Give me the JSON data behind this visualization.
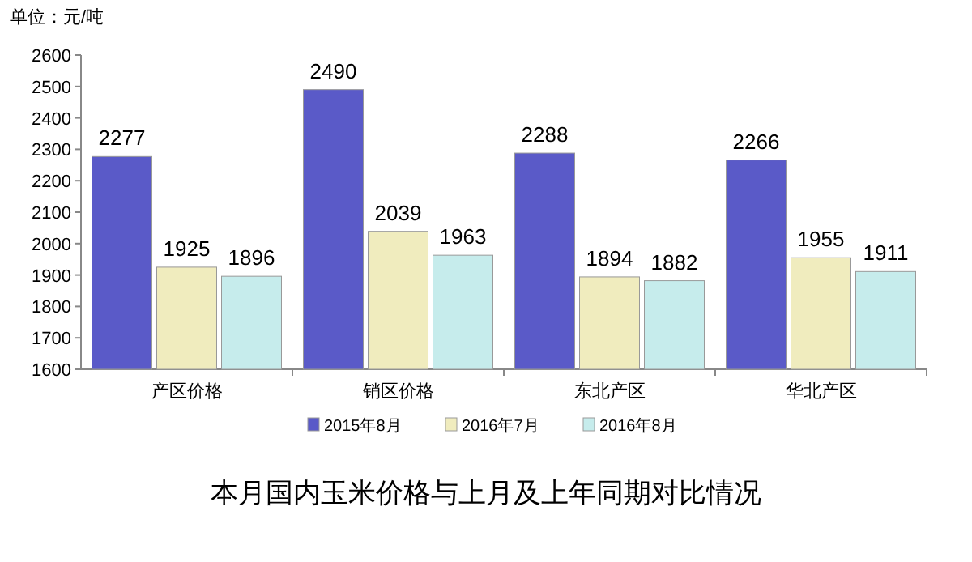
{
  "chart_data": {
    "type": "bar",
    "ylabel": "单位：元/吨",
    "title": "本月国内玉米价格与上月及上年同期对比情况",
    "categories": [
      "产区价格",
      "销区价格",
      "东北产区",
      "华北产区"
    ],
    "series": [
      {
        "name": "2015年8月",
        "color": "#5a5ac8",
        "values": [
          2277,
          2490,
          2288,
          2266
        ]
      },
      {
        "name": "2016年7月",
        "color": "#f0ecbe",
        "values": [
          1925,
          2039,
          1894,
          1955
        ]
      },
      {
        "name": "2016年8月",
        "color": "#c6ecec",
        "values": [
          1896,
          1963,
          1882,
          1911
        ]
      }
    ],
    "ylim": [
      1600,
      2600
    ],
    "yticks": [
      1600,
      1700,
      1800,
      1900,
      2000,
      2100,
      2200,
      2300,
      2400,
      2500,
      2600
    ],
    "data_labels": true,
    "legend": "bottom"
  }
}
